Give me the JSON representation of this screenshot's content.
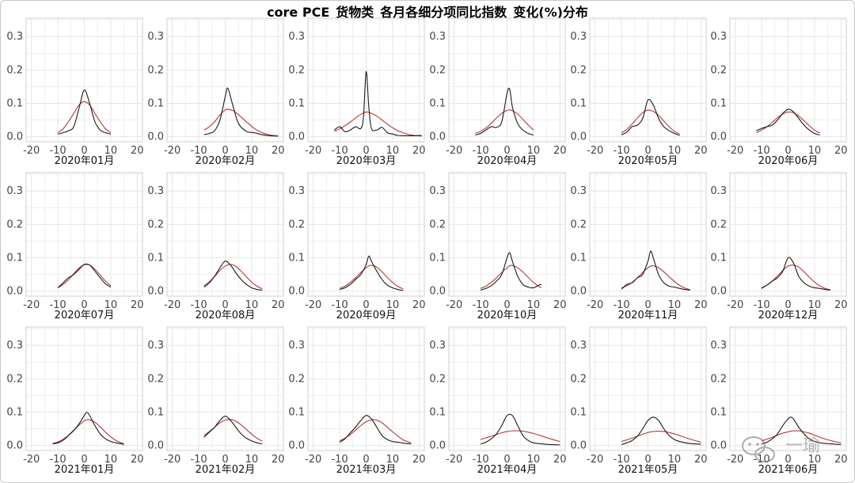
{
  "title": "core PCE_货物类_各月各细分项同比指数_变化(%)分布",
  "watermark": {
    "text": "一瑜"
  },
  "colors": {
    "density": "#1a1a1a",
    "normal": "#b23a3a",
    "grid": "#e6e6e6",
    "frame": "#cfcfcf"
  },
  "chart_data": {
    "type": "line",
    "xlim": [
      -22,
      22
    ],
    "ylim": [
      -0.015,
      0.355
    ],
    "xticks": [
      -20,
      -10,
      0,
      10,
      20
    ],
    "yticks": [
      0.0,
      0.1,
      0.2,
      0.3
    ],
    "ytick_labels": [
      "0.0",
      "0.1",
      "0.2",
      "0.3"
    ],
    "grid": true,
    "panels": [
      {
        "label": "2020年01月",
        "x": [
          -10,
          -8,
          -6,
          -4,
          -2,
          0,
          2,
          4,
          6,
          8,
          10
        ],
        "density": [
          0.008,
          0.012,
          0.018,
          0.03,
          0.085,
          0.14,
          0.1,
          0.045,
          0.02,
          0.012,
          0.008
        ],
        "normal": [
          0.012,
          0.024,
          0.045,
          0.07,
          0.095,
          0.105,
          0.095,
          0.07,
          0.045,
          0.024,
          0.012
        ]
      },
      {
        "label": "2020年02月",
        "x": [
          -8,
          -6,
          -4,
          -2,
          0,
          1,
          3,
          5,
          8,
          11,
          14,
          17,
          20
        ],
        "density": [
          0.006,
          0.01,
          0.018,
          0.05,
          0.12,
          0.145,
          0.09,
          0.04,
          0.016,
          0.012,
          0.006,
          0.003,
          0.002
        ],
        "normal": [
          0.02,
          0.03,
          0.045,
          0.065,
          0.08,
          0.082,
          0.078,
          0.066,
          0.045,
          0.025,
          0.012,
          0.005,
          0.002
        ]
      },
      {
        "label": "2020年03月",
        "x": [
          -12,
          -10,
          -8,
          -6,
          -4,
          -2,
          -1,
          0,
          1,
          2,
          4,
          6,
          8,
          10,
          12,
          15,
          18,
          21
        ],
        "density": [
          0.02,
          0.03,
          0.015,
          0.02,
          0.03,
          0.025,
          0.06,
          0.195,
          0.09,
          0.025,
          0.02,
          0.028,
          0.012,
          0.008,
          0.004,
          0.003,
          0.003,
          0.004
        ],
        "normal": [
          0.016,
          0.024,
          0.033,
          0.044,
          0.056,
          0.067,
          0.071,
          0.074,
          0.073,
          0.07,
          0.062,
          0.05,
          0.038,
          0.027,
          0.018,
          0.009,
          0.004,
          0.002
        ]
      },
      {
        "label": "2020年04月",
        "x": [
          -12,
          -10,
          -8,
          -6,
          -4,
          -2,
          0,
          1,
          2,
          4,
          6,
          8,
          10
        ],
        "density": [
          0.005,
          0.01,
          0.02,
          0.03,
          0.028,
          0.045,
          0.13,
          0.142,
          0.09,
          0.04,
          0.02,
          0.01,
          0.005
        ],
        "normal": [
          0.01,
          0.016,
          0.026,
          0.04,
          0.056,
          0.07,
          0.079,
          0.08,
          0.078,
          0.068,
          0.052,
          0.035,
          0.02
        ]
      },
      {
        "label": "2020年05月",
        "x": [
          -10,
          -8,
          -6,
          -4,
          -2,
          0,
          2,
          4,
          6,
          8,
          10,
          12
        ],
        "density": [
          0.006,
          0.014,
          0.03,
          0.035,
          0.055,
          0.11,
          0.095,
          0.055,
          0.03,
          0.018,
          0.01,
          0.004
        ],
        "normal": [
          0.012,
          0.022,
          0.038,
          0.056,
          0.072,
          0.08,
          0.076,
          0.064,
          0.047,
          0.03,
          0.016,
          0.008
        ]
      },
      {
        "label": "2020年06月",
        "x": [
          -12,
          -10,
          -8,
          -6,
          -4,
          -2,
          0,
          2,
          4,
          6,
          8,
          10,
          12
        ],
        "density": [
          0.018,
          0.025,
          0.03,
          0.035,
          0.05,
          0.07,
          0.082,
          0.075,
          0.055,
          0.035,
          0.02,
          0.01,
          0.005
        ],
        "normal": [
          0.012,
          0.02,
          0.03,
          0.043,
          0.057,
          0.068,
          0.074,
          0.072,
          0.062,
          0.048,
          0.033,
          0.02,
          0.011
        ]
      },
      {
        "label": "2020年07月",
        "x": [
          -10,
          -8,
          -6,
          -4,
          -2,
          0,
          2,
          4,
          6,
          8,
          10
        ],
        "density": [
          0.01,
          0.025,
          0.04,
          0.05,
          0.065,
          0.08,
          0.078,
          0.06,
          0.04,
          0.022,
          0.012
        ],
        "normal": [
          0.01,
          0.02,
          0.034,
          0.052,
          0.069,
          0.079,
          0.078,
          0.066,
          0.048,
          0.03,
          0.016
        ]
      },
      {
        "label": "2020年08月",
        "x": [
          -8,
          -6,
          -4,
          -2,
          0,
          2,
          4,
          6,
          8,
          10,
          12,
          14
        ],
        "density": [
          0.012,
          0.025,
          0.045,
          0.07,
          0.09,
          0.078,
          0.055,
          0.035,
          0.02,
          0.01,
          0.005,
          0.003
        ],
        "normal": [
          0.016,
          0.028,
          0.044,
          0.062,
          0.075,
          0.08,
          0.074,
          0.06,
          0.043,
          0.027,
          0.015,
          0.007
        ]
      },
      {
        "label": "2020年09月",
        "x": [
          -10,
          -8,
          -6,
          -4,
          -2,
          0,
          1,
          2,
          4,
          6,
          8,
          10,
          12,
          14
        ],
        "density": [
          0.005,
          0.01,
          0.02,
          0.035,
          0.05,
          0.08,
          0.105,
          0.09,
          0.06,
          0.035,
          0.018,
          0.01,
          0.005,
          0.002
        ],
        "normal": [
          0.008,
          0.015,
          0.026,
          0.04,
          0.056,
          0.07,
          0.076,
          0.077,
          0.072,
          0.058,
          0.041,
          0.026,
          0.014,
          0.007
        ]
      },
      {
        "label": "2020年10月",
        "x": [
          -10,
          -8,
          -6,
          -4,
          -2,
          0,
          1,
          2,
          4,
          6,
          8,
          10,
          12,
          13
        ],
        "density": [
          0.003,
          0.008,
          0.016,
          0.03,
          0.05,
          0.1,
          0.115,
          0.09,
          0.045,
          0.02,
          0.012,
          0.01,
          0.018,
          0.02
        ],
        "normal": [
          0.008,
          0.015,
          0.026,
          0.04,
          0.056,
          0.07,
          0.076,
          0.077,
          0.07,
          0.057,
          0.041,
          0.026,
          0.014,
          0.01
        ]
      },
      {
        "label": "2020年11月",
        "x": [
          -10,
          -8,
          -6,
          -4,
          -2,
          0,
          1,
          2,
          4,
          6,
          8,
          10,
          12,
          14,
          16
        ],
        "density": [
          0.006,
          0.02,
          0.025,
          0.04,
          0.05,
          0.09,
          0.12,
          0.1,
          0.05,
          0.025,
          0.015,
          0.012,
          0.008,
          0.005,
          0.003
        ],
        "normal": [
          0.01,
          0.016,
          0.026,
          0.04,
          0.056,
          0.07,
          0.075,
          0.076,
          0.07,
          0.058,
          0.043,
          0.029,
          0.017,
          0.009,
          0.004
        ]
      },
      {
        "label": "2020年12月",
        "x": [
          -10,
          -8,
          -6,
          -4,
          -2,
          0,
          2,
          4,
          6,
          8,
          10,
          12,
          14,
          16
        ],
        "density": [
          0.008,
          0.018,
          0.03,
          0.04,
          0.06,
          0.1,
          0.085,
          0.045,
          0.025,
          0.015,
          0.01,
          0.008,
          0.005,
          0.003
        ],
        "normal": [
          0.01,
          0.018,
          0.03,
          0.046,
          0.062,
          0.075,
          0.078,
          0.072,
          0.058,
          0.042,
          0.027,
          0.016,
          0.008,
          0.004
        ]
      },
      {
        "label": "2021年01月",
        "x": [
          -12,
          -10,
          -8,
          -6,
          -4,
          -2,
          0,
          1,
          2,
          4,
          6,
          8,
          10,
          12,
          14,
          15
        ],
        "density": [
          0.005,
          0.008,
          0.016,
          0.03,
          0.045,
          0.065,
          0.09,
          0.1,
          0.09,
          0.06,
          0.035,
          0.02,
          0.012,
          0.008,
          0.005,
          0.004
        ],
        "normal": [
          0.006,
          0.011,
          0.019,
          0.031,
          0.046,
          0.061,
          0.074,
          0.077,
          0.077,
          0.07,
          0.056,
          0.04,
          0.026,
          0.015,
          0.008,
          0.005
        ]
      },
      {
        "label": "2021年02月",
        "x": [
          -8,
          -6,
          -4,
          -2,
          0,
          2,
          4,
          6,
          8,
          10,
          12,
          14
        ],
        "density": [
          0.025,
          0.04,
          0.055,
          0.075,
          0.088,
          0.075,
          0.055,
          0.035,
          0.022,
          0.014,
          0.008,
          0.005
        ],
        "normal": [
          0.03,
          0.042,
          0.055,
          0.068,
          0.076,
          0.078,
          0.073,
          0.062,
          0.048,
          0.034,
          0.022,
          0.013
        ]
      },
      {
        "label": "2021年03月",
        "x": [
          -10,
          -8,
          -6,
          -4,
          -2,
          0,
          2,
          4,
          6,
          8,
          10,
          12,
          14,
          17
        ],
        "density": [
          0.01,
          0.02,
          0.038,
          0.055,
          0.075,
          0.09,
          0.08,
          0.055,
          0.03,
          0.018,
          0.012,
          0.01,
          0.007,
          0.005
        ],
        "normal": [
          0.014,
          0.022,
          0.033,
          0.046,
          0.06,
          0.071,
          0.077,
          0.076,
          0.068,
          0.055,
          0.041,
          0.028,
          0.017,
          0.008
        ]
      },
      {
        "label": "2021年04月",
        "x": [
          -10,
          -8,
          -6,
          -4,
          -2,
          0,
          2,
          4,
          6,
          8,
          10,
          13,
          16,
          20
        ],
        "density": [
          0.005,
          0.01,
          0.02,
          0.035,
          0.06,
          0.09,
          0.09,
          0.06,
          0.03,
          0.015,
          0.008,
          0.005,
          0.003,
          0.002
        ],
        "normal": [
          0.018,
          0.023,
          0.028,
          0.033,
          0.038,
          0.042,
          0.044,
          0.044,
          0.043,
          0.04,
          0.036,
          0.029,
          0.021,
          0.012
        ]
      },
      {
        "label": "2021年05月",
        "x": [
          -10,
          -8,
          -6,
          -4,
          -2,
          0,
          2,
          4,
          6,
          8,
          10,
          13,
          16,
          20
        ],
        "density": [
          0.003,
          0.008,
          0.015,
          0.028,
          0.05,
          0.075,
          0.085,
          0.075,
          0.05,
          0.03,
          0.018,
          0.01,
          0.006,
          0.004
        ],
        "normal": [
          0.012,
          0.017,
          0.022,
          0.028,
          0.034,
          0.039,
          0.042,
          0.043,
          0.042,
          0.039,
          0.035,
          0.027,
          0.019,
          0.01
        ]
      },
      {
        "label": "2021年06月",
        "x": [
          -10,
          -8,
          -6,
          -4,
          -2,
          0,
          1,
          2,
          4,
          6,
          8,
          10,
          13,
          16,
          20
        ],
        "density": [
          0.005,
          0.01,
          0.02,
          0.035,
          0.06,
          0.08,
          0.085,
          0.08,
          0.055,
          0.035,
          0.02,
          0.012,
          0.007,
          0.005,
          0.003
        ],
        "normal": [
          0.014,
          0.019,
          0.025,
          0.031,
          0.037,
          0.041,
          0.043,
          0.044,
          0.044,
          0.041,
          0.037,
          0.031,
          0.022,
          0.015,
          0.008
        ]
      }
    ]
  }
}
